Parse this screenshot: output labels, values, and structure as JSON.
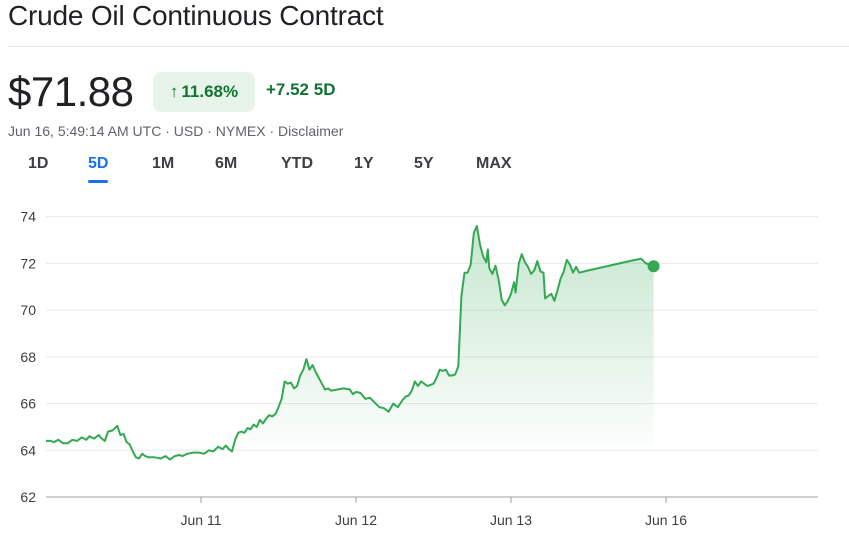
{
  "header": {
    "title": "Crude Oil Continuous Contract",
    "price": "$71.88",
    "percent_change": "11.68%",
    "abs_change": "+7.52 5D",
    "meta": {
      "timestamp": "Jun 16, 5:49:14 AM UTC",
      "currency": "USD",
      "exchange": "NYMEX",
      "disclaimer": "Disclaimer"
    }
  },
  "tabs": [
    {
      "label": "1D",
      "active": false
    },
    {
      "label": "5D",
      "active": true
    },
    {
      "label": "1M",
      "active": false
    },
    {
      "label": "6M",
      "active": false
    },
    {
      "label": "YTD",
      "active": false
    },
    {
      "label": "1Y",
      "active": false
    },
    {
      "label": "5Y",
      "active": false
    },
    {
      "label": "MAX",
      "active": false
    }
  ],
  "colors": {
    "line": "#34a853",
    "positive_text": "#137333",
    "positive_bg": "#e6f4ea",
    "active_tab": "#1a73e8"
  },
  "chart_data": {
    "type": "area",
    "title": "",
    "xlabel": "",
    "ylabel": "",
    "ylim": [
      62,
      74.5
    ],
    "yticks": [
      62,
      64,
      66,
      68,
      70,
      72,
      74
    ],
    "xlim": [
      0,
      5
    ],
    "xticks": [
      {
        "x": 1,
        "label": "Jun 11"
      },
      {
        "x": 2,
        "label": "Jun 12"
      },
      {
        "x": 3,
        "label": "Jun 13"
      },
      {
        "x": 4,
        "label": "Jun 16"
      }
    ],
    "grid": true,
    "legend": "none",
    "series": [
      {
        "points": [
          [
            0.0,
            64.4
          ],
          [
            0.03,
            64.4
          ],
          [
            0.05,
            64.35
          ],
          [
            0.08,
            64.45
          ],
          [
            0.11,
            64.3
          ],
          [
            0.14,
            64.3
          ],
          [
            0.17,
            64.45
          ],
          [
            0.2,
            64.4
          ],
          [
            0.23,
            64.55
          ],
          [
            0.26,
            64.45
          ],
          [
            0.28,
            64.6
          ],
          [
            0.31,
            64.5
          ],
          [
            0.34,
            64.65
          ],
          [
            0.36,
            64.5
          ],
          [
            0.38,
            64.4
          ],
          [
            0.4,
            64.8
          ],
          [
            0.43,
            64.85
          ],
          [
            0.46,
            65.05
          ],
          [
            0.48,
            64.65
          ],
          [
            0.5,
            64.7
          ],
          [
            0.52,
            64.35
          ],
          [
            0.54,
            64.25
          ],
          [
            0.56,
            63.95
          ],
          [
            0.58,
            63.7
          ],
          [
            0.6,
            63.65
          ],
          [
            0.62,
            63.85
          ],
          [
            0.64,
            63.75
          ],
          [
            0.66,
            63.7
          ],
          [
            0.7,
            63.7
          ],
          [
            0.74,
            63.65
          ],
          [
            0.77,
            63.75
          ],
          [
            0.8,
            63.6
          ],
          [
            0.83,
            63.75
          ],
          [
            0.86,
            63.8
          ],
          [
            0.88,
            63.75
          ],
          [
            0.91,
            63.85
          ],
          [
            0.95,
            63.9
          ],
          [
            0.99,
            63.9
          ],
          [
            1.02,
            63.85
          ],
          [
            1.05,
            64.0
          ],
          [
            1.08,
            63.95
          ],
          [
            1.11,
            64.15
          ],
          [
            1.14,
            64.05
          ],
          [
            1.16,
            64.2
          ],
          [
            1.18,
            64.05
          ],
          [
            1.2,
            63.95
          ],
          [
            1.22,
            64.45
          ],
          [
            1.24,
            64.75
          ],
          [
            1.26,
            64.8
          ],
          [
            1.28,
            64.75
          ],
          [
            1.3,
            64.95
          ],
          [
            1.32,
            64.9
          ],
          [
            1.34,
            65.1
          ],
          [
            1.36,
            65.0
          ],
          [
            1.38,
            65.3
          ],
          [
            1.4,
            65.15
          ],
          [
            1.42,
            65.35
          ],
          [
            1.44,
            65.5
          ],
          [
            1.46,
            65.45
          ],
          [
            1.48,
            65.55
          ],
          [
            1.5,
            65.85
          ],
          [
            1.52,
            66.2
          ],
          [
            1.54,
            66.95
          ],
          [
            1.56,
            66.85
          ],
          [
            1.58,
            66.9
          ],
          [
            1.6,
            66.65
          ],
          [
            1.62,
            66.75
          ],
          [
            1.64,
            67.2
          ],
          [
            1.66,
            67.45
          ],
          [
            1.68,
            67.9
          ],
          [
            1.7,
            67.45
          ],
          [
            1.72,
            67.65
          ],
          [
            1.74,
            67.35
          ],
          [
            1.76,
            67.1
          ],
          [
            1.78,
            66.85
          ],
          [
            1.8,
            66.6
          ],
          [
            1.82,
            66.65
          ],
          [
            1.84,
            66.55
          ],
          [
            1.88,
            66.6
          ],
          [
            1.92,
            66.65
          ],
          [
            1.96,
            66.6
          ],
          [
            1.98,
            66.4
          ],
          [
            2.0,
            66.5
          ],
          [
            2.03,
            66.45
          ],
          [
            2.06,
            66.2
          ],
          [
            2.09,
            66.25
          ],
          [
            2.12,
            66.05
          ],
          [
            2.15,
            65.85
          ],
          [
            2.18,
            65.8
          ],
          [
            2.21,
            65.65
          ],
          [
            2.24,
            66.0
          ],
          [
            2.27,
            65.85
          ],
          [
            2.3,
            66.15
          ],
          [
            2.32,
            66.3
          ],
          [
            2.34,
            66.35
          ],
          [
            2.36,
            66.55
          ],
          [
            2.38,
            66.95
          ],
          [
            2.4,
            66.75
          ],
          [
            2.42,
            66.95
          ],
          [
            2.44,
            66.85
          ],
          [
            2.46,
            66.75
          ],
          [
            2.48,
            66.8
          ],
          [
            2.5,
            66.85
          ],
          [
            2.52,
            67.1
          ],
          [
            2.54,
            67.45
          ],
          [
            2.56,
            67.4
          ],
          [
            2.58,
            67.45
          ],
          [
            2.6,
            67.2
          ],
          [
            2.62,
            67.2
          ],
          [
            2.64,
            67.25
          ],
          [
            2.66,
            67.6
          ],
          [
            2.68,
            70.6
          ],
          [
            2.7,
            71.6
          ],
          [
            2.72,
            71.6
          ],
          [
            2.74,
            71.95
          ],
          [
            2.76,
            73.3
          ],
          [
            2.78,
            73.6
          ],
          [
            2.8,
            72.8
          ],
          [
            2.82,
            72.3
          ],
          [
            2.84,
            72.05
          ],
          [
            2.85,
            72.6
          ],
          [
            2.86,
            71.8
          ],
          [
            2.88,
            71.55
          ],
          [
            2.9,
            71.9
          ],
          [
            2.92,
            71.3
          ],
          [
            2.94,
            70.45
          ],
          [
            2.96,
            70.2
          ],
          [
            2.98,
            70.4
          ],
          [
            3.0,
            70.7
          ],
          [
            3.02,
            71.2
          ],
          [
            3.03,
            70.75
          ],
          [
            3.05,
            72.0
          ],
          [
            3.07,
            72.4
          ],
          [
            3.09,
            72.05
          ],
          [
            3.11,
            71.85
          ],
          [
            3.13,
            71.55
          ],
          [
            3.15,
            71.7
          ],
          [
            3.17,
            72.1
          ],
          [
            3.19,
            71.65
          ],
          [
            3.21,
            71.6
          ],
          [
            3.22,
            70.5
          ],
          [
            3.24,
            70.6
          ],
          [
            3.26,
            70.7
          ],
          [
            3.28,
            70.4
          ],
          [
            3.3,
            70.85
          ],
          [
            3.32,
            71.35
          ],
          [
            3.34,
            71.65
          ],
          [
            3.36,
            72.15
          ],
          [
            3.38,
            71.95
          ],
          [
            3.4,
            71.6
          ],
          [
            3.42,
            71.85
          ],
          [
            3.44,
            71.6
          ],
          [
            3.5,
            71.7
          ],
          [
            3.6,
            71.85
          ],
          [
            3.7,
            72.0
          ],
          [
            3.8,
            72.15
          ],
          [
            3.84,
            72.2
          ],
          [
            3.87,
            72.0
          ],
          [
            3.9,
            71.95
          ],
          [
            3.92,
            71.88
          ]
        ]
      }
    ]
  }
}
